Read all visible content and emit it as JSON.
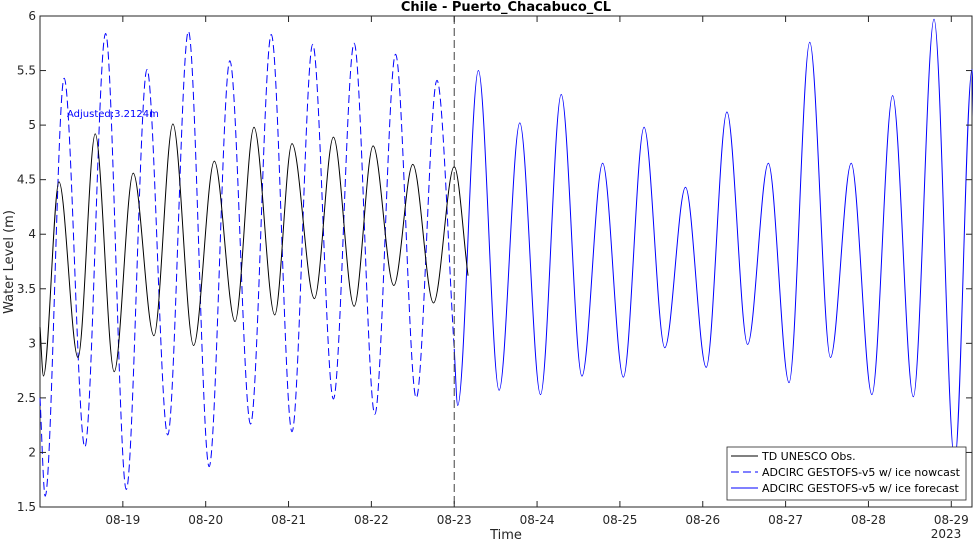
{
  "chart_data": {
    "type": "line",
    "title": "Chile - Puerto_Chacabuco_CL",
    "xlabel": "Time",
    "ylabel": "Water Level (m)",
    "ylim": [
      1.5,
      6
    ],
    "xlim": [
      "2023-08-18 00:00",
      "2023-08-29 06:00"
    ],
    "grid": false,
    "year_label": "2023",
    "x_ticks": [
      "08-19",
      "08-20",
      "08-21",
      "08-22",
      "08-23",
      "08-24",
      "08-25",
      "08-26",
      "08-27",
      "08-28",
      "08-29"
    ],
    "y_ticks": [
      "1.5",
      "2",
      "2.5",
      "3",
      "3.5",
      "4",
      "4.5",
      "5",
      "5.5",
      "6"
    ],
    "nowcast_end": "2023-08-23 00:00",
    "annotation": "Adjusted:3.2124m",
    "legend_position": "bottom-right",
    "series": [
      {
        "name": "TD UNESCO Obs.",
        "color": "#000000",
        "style": "solid",
        "points": [
          [
            "2023-08-18 00:00",
            3.15
          ],
          [
            "2023-08-18 01:00",
            2.7
          ],
          [
            "2023-08-18 05:30",
            4.48
          ],
          [
            "2023-08-18 11:00",
            2.87
          ],
          [
            "2023-08-18 16:00",
            4.92
          ],
          [
            "2023-08-18 21:30",
            2.74
          ],
          [
            "2023-08-19 03:00",
            4.56
          ],
          [
            "2023-08-19 09:00",
            3.07
          ],
          [
            "2023-08-19 14:30",
            5.01
          ],
          [
            "2023-08-19 20:30",
            2.98
          ],
          [
            "2023-08-20 02:30",
            4.67
          ],
          [
            "2023-08-20 08:30",
            3.2
          ],
          [
            "2023-08-20 14:00",
            4.98
          ],
          [
            "2023-08-20 20:00",
            3.26
          ],
          [
            "2023-08-21 01:00",
            4.83
          ],
          [
            "2023-08-21 07:30",
            3.41
          ],
          [
            "2023-08-21 13:00",
            4.89
          ],
          [
            "2023-08-21 19:00",
            3.34
          ],
          [
            "2023-08-22 00:30",
            4.81
          ],
          [
            "2023-08-22 06:30",
            3.53
          ],
          [
            "2023-08-22 12:00",
            4.64
          ],
          [
            "2023-08-22 18:00",
            3.37
          ],
          [
            "2023-08-23 00:00",
            4.62
          ],
          [
            "2023-08-23 04:00",
            3.62
          ]
        ]
      },
      {
        "name": "ADCIRC GESTOFS-v5  w/ ice nowcast",
        "color": "#0000ff",
        "style": "dashed",
        "points": [
          [
            "2023-08-18 00:00",
            2.5
          ],
          [
            "2023-08-18 01:30",
            1.6
          ],
          [
            "2023-08-18 07:00",
            5.43
          ],
          [
            "2023-08-18 13:00",
            2.05
          ],
          [
            "2023-08-18 19:00",
            5.84
          ],
          [
            "2023-08-19 01:00",
            1.66
          ],
          [
            "2023-08-19 07:00",
            5.51
          ],
          [
            "2023-08-19 13:00",
            2.16
          ],
          [
            "2023-08-19 19:00",
            5.86
          ],
          [
            "2023-08-20 01:00",
            1.87
          ],
          [
            "2023-08-20 07:00",
            5.59
          ],
          [
            "2023-08-20 13:00",
            2.26
          ],
          [
            "2023-08-20 19:00",
            5.83
          ],
          [
            "2023-08-21 01:00",
            2.19
          ],
          [
            "2023-08-21 07:00",
            5.74
          ],
          [
            "2023-08-21 13:00",
            2.49
          ],
          [
            "2023-08-21 19:00",
            5.75
          ],
          [
            "2023-08-22 01:00",
            2.35
          ],
          [
            "2023-08-22 07:00",
            5.65
          ],
          [
            "2023-08-22 13:00",
            2.5
          ],
          [
            "2023-08-22 19:00",
            5.41
          ],
          [
            "2023-08-23 00:00",
            2.95
          ]
        ]
      },
      {
        "name": "ADCIRC GESTOFS-v5  w/ ice forecast",
        "color": "#0000ff",
        "style": "solid",
        "points": [
          [
            "2023-08-23 00:00",
            2.95
          ],
          [
            "2023-08-23 01:00",
            2.43
          ],
          [
            "2023-08-23 07:00",
            5.5
          ],
          [
            "2023-08-23 13:00",
            2.57
          ],
          [
            "2023-08-23 19:00",
            5.02
          ],
          [
            "2023-08-24 01:00",
            2.53
          ],
          [
            "2023-08-24 07:00",
            5.28
          ],
          [
            "2023-08-24 13:00",
            2.7
          ],
          [
            "2023-08-24 19:00",
            4.65
          ],
          [
            "2023-08-25 01:00",
            2.69
          ],
          [
            "2023-08-25 07:00",
            4.98
          ],
          [
            "2023-08-25 13:00",
            2.96
          ],
          [
            "2023-08-25 19:00",
            4.43
          ],
          [
            "2023-08-26 01:00",
            2.78
          ],
          [
            "2023-08-26 07:00",
            5.12
          ],
          [
            "2023-08-26 13:00",
            2.99
          ],
          [
            "2023-08-26 19:00",
            4.65
          ],
          [
            "2023-08-27 01:00",
            2.64
          ],
          [
            "2023-08-27 07:00",
            5.76
          ],
          [
            "2023-08-27 13:00",
            2.87
          ],
          [
            "2023-08-27 19:00",
            4.65
          ],
          [
            "2023-08-28 01:00",
            2.53
          ],
          [
            "2023-08-28 07:00",
            5.27
          ],
          [
            "2023-08-28 13:00",
            2.51
          ],
          [
            "2023-08-28 19:00",
            5.97
          ],
          [
            "2023-08-29 01:00",
            1.92
          ],
          [
            "2023-08-29 06:00",
            5.51
          ],
          [
            "2023-08-29 06:40",
            4.75
          ]
        ]
      }
    ]
  }
}
